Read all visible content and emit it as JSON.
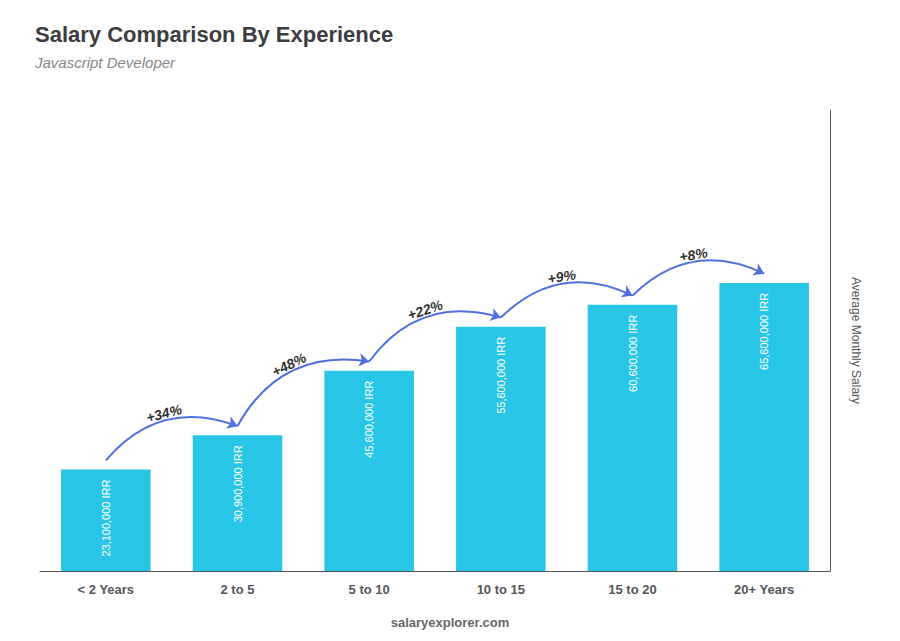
{
  "chart_data": {
    "type": "bar",
    "title": "Salary Comparison By Experience",
    "subtitle": "Javascript Developer",
    "ylabel": "Average Monthly Salary",
    "categories": [
      "< 2 Years",
      "2 to 5",
      "5 to 10",
      "10 to 15",
      "15 to 20",
      "20+ Years"
    ],
    "values": [
      23100000,
      30900000,
      45600000,
      55600000,
      60600000,
      65600000
    ],
    "value_labels": [
      "23,100,000 IRR",
      "30,900,000 IRR",
      "45,600,000 IRR",
      "55,600,000 IRR",
      "60,600,000 IRR",
      "65,600,000 IRR"
    ],
    "data_labels": true,
    "annotations": [
      "+34%",
      "+48%",
      "+22%",
      "+9%",
      "+8%"
    ],
    "source": "salaryexplorer.com",
    "color": "#29c5e6",
    "ylim": [
      0,
      104960000
    ],
    "grid": false,
    "tick_labels": "x"
  }
}
